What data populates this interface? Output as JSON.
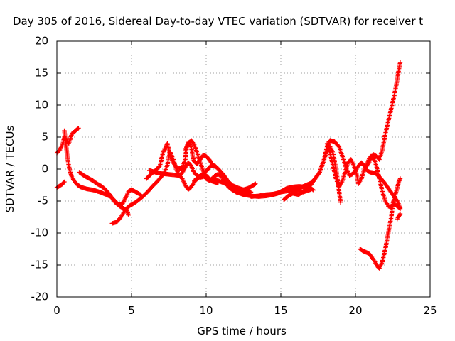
{
  "chart_data": {
    "type": "scatter",
    "title": "Day 305 of 2016, Sidereal Day-to-day VTEC variation (SDTVAR) for receiver t",
    "xlabel": "GPS time / hours",
    "ylabel": "SDTVAR / TECUs",
    "xlim": [
      0,
      25
    ],
    "ylim": [
      -20,
      20
    ],
    "x_ticks": [
      "0",
      "5",
      "10",
      "15",
      "20",
      "25"
    ],
    "y_ticks": [
      "-20",
      "-15",
      "-10",
      "-5",
      "0",
      "5",
      "10",
      "15",
      "20"
    ],
    "grid": true,
    "marker": "plus",
    "colors": {
      "series": "#ff0000"
    },
    "series": [
      {
        "points": [
          [
            0.0,
            -2.9
          ],
          [
            0.2,
            -2.6
          ],
          [
            0.4,
            -2.3
          ],
          [
            0.5,
            -2.0
          ]
        ]
      },
      {
        "points": [
          [
            0.0,
            2.5
          ],
          [
            0.2,
            3.0
          ],
          [
            0.4,
            4.0
          ],
          [
            0.5,
            5.0
          ],
          [
            0.6,
            4.6
          ],
          [
            0.8,
            4.0
          ],
          [
            1.0,
            5.5
          ],
          [
            1.3,
            6.1
          ],
          [
            1.45,
            6.4
          ]
        ]
      },
      {
        "points": [
          [
            0.5,
            6.0
          ],
          [
            0.6,
            4.0
          ],
          [
            0.7,
            2.0
          ],
          [
            0.8,
            0.5
          ],
          [
            0.9,
            -0.5
          ],
          [
            1.0,
            -1.2
          ],
          [
            1.2,
            -2.0
          ],
          [
            1.4,
            -2.5
          ],
          [
            1.6,
            -2.8
          ],
          [
            2.0,
            -3.1
          ],
          [
            2.5,
            -3.3
          ],
          [
            3.0,
            -3.7
          ],
          [
            3.3,
            -4.0
          ],
          [
            3.6,
            -4.3
          ],
          [
            3.9,
            -5.0
          ],
          [
            4.2,
            -5.8
          ],
          [
            4.5,
            -6.2
          ],
          [
            4.7,
            -6.5
          ],
          [
            4.8,
            -7.2
          ]
        ]
      },
      {
        "points": [
          [
            1.5,
            -0.5
          ],
          [
            1.8,
            -1.0
          ],
          [
            2.1,
            -1.4
          ],
          [
            2.4,
            -1.8
          ],
          [
            2.7,
            -2.3
          ],
          [
            3.0,
            -2.7
          ],
          [
            3.3,
            -3.3
          ],
          [
            3.6,
            -4.2
          ],
          [
            3.9,
            -5.2
          ],
          [
            4.1,
            -5.6
          ],
          [
            4.4,
            -5.4
          ],
          [
            4.6,
            -4.5
          ],
          [
            4.8,
            -3.5
          ],
          [
            5.0,
            -3.2
          ],
          [
            5.3,
            -3.6
          ],
          [
            5.6,
            -4.0
          ]
        ]
      },
      {
        "points": [
          [
            3.7,
            -8.5
          ],
          [
            4.0,
            -8.3
          ],
          [
            4.3,
            -7.5
          ],
          [
            4.6,
            -6.3
          ],
          [
            4.9,
            -5.7
          ],
          [
            5.2,
            -5.3
          ],
          [
            5.5,
            -4.8
          ],
          [
            5.8,
            -4.2
          ],
          [
            6.1,
            -3.5
          ],
          [
            6.4,
            -2.7
          ],
          [
            6.7,
            -2.0
          ],
          [
            7.0,
            -1.2
          ],
          [
            7.2,
            -0.5
          ],
          [
            7.4,
            0.6
          ],
          [
            7.5,
            2.0
          ],
          [
            7.6,
            2.6
          ],
          [
            7.8,
            1.5
          ],
          [
            8.0,
            0.0
          ],
          [
            8.2,
            -1.0
          ],
          [
            8.4,
            -0.6
          ],
          [
            8.6,
            0.3
          ],
          [
            8.8,
            1.0
          ],
          [
            9.0,
            0.5
          ],
          [
            9.2,
            -0.6
          ],
          [
            9.4,
            -1.0
          ],
          [
            9.6,
            -1.3
          ],
          [
            9.8,
            -1.2
          ],
          [
            10.0,
            -0.9
          ]
        ]
      },
      {
        "points": [
          [
            6.0,
            -1.5
          ],
          [
            6.3,
            -0.8
          ],
          [
            6.6,
            -0.2
          ],
          [
            6.9,
            0.5
          ],
          [
            7.1,
            2.5
          ],
          [
            7.3,
            3.5
          ],
          [
            7.4,
            4.0
          ],
          [
            7.5,
            3.0
          ],
          [
            7.6,
            2.2
          ],
          [
            7.8,
            1.0
          ],
          [
            8.0,
            0.3
          ],
          [
            8.2,
            0.1
          ],
          [
            8.4,
            0.2
          ],
          [
            8.6,
            1.5
          ],
          [
            8.7,
            3.5
          ],
          [
            8.8,
            4.2
          ],
          [
            9.0,
            3.5
          ],
          [
            9.1,
            2.0
          ],
          [
            9.2,
            1.2
          ],
          [
            9.4,
            0.8
          ],
          [
            9.6,
            1.5
          ],
          [
            9.8,
            2.2
          ],
          [
            10.0,
            2.0
          ],
          [
            10.2,
            1.5
          ],
          [
            10.4,
            0.8
          ],
          [
            10.6,
            0.3
          ]
        ]
      },
      {
        "points": [
          [
            6.2,
            -0.2
          ],
          [
            6.6,
            -0.5
          ],
          [
            7.0,
            -0.7
          ],
          [
            7.4,
            -0.8
          ],
          [
            7.8,
            -0.9
          ],
          [
            8.2,
            -1.0
          ],
          [
            8.4,
            -1.5
          ],
          [
            8.6,
            -2.5
          ],
          [
            8.8,
            -3.2
          ],
          [
            9.0,
            -2.8
          ],
          [
            9.2,
            -2.0
          ],
          [
            9.4,
            -1.5
          ],
          [
            9.6,
            -1.0
          ],
          [
            9.8,
            -0.8
          ],
          [
            10.0,
            -1.0
          ],
          [
            10.2,
            -1.5
          ],
          [
            10.4,
            -1.9
          ],
          [
            10.8,
            -2.2
          ]
        ]
      },
      {
        "points": [
          [
            8.6,
            3.0
          ],
          [
            8.8,
            4.0
          ],
          [
            9.0,
            4.5
          ],
          [
            9.2,
            3.8
          ],
          [
            9.4,
            2.5
          ],
          [
            9.6,
            1.0
          ],
          [
            9.8,
            -0.2
          ],
          [
            10.0,
            -1.5
          ],
          [
            10.2,
            -1.8
          ],
          [
            10.4,
            -1.5
          ],
          [
            10.6,
            -1.0
          ],
          [
            10.8,
            -0.8
          ],
          [
            11.0,
            -1.1
          ],
          [
            11.2,
            -1.8
          ],
          [
            11.4,
            -2.5
          ],
          [
            11.6,
            -3.0
          ],
          [
            11.8,
            -3.3
          ],
          [
            12.2,
            -3.6
          ],
          [
            12.6,
            -3.9
          ],
          [
            13.0,
            -4.0
          ]
        ]
      },
      {
        "points": [
          [
            9.2,
            -1.8
          ],
          [
            9.6,
            -1.2
          ],
          [
            10.0,
            -0.3
          ],
          [
            10.3,
            0.5
          ],
          [
            10.6,
            0.5
          ],
          [
            10.9,
            -0.2
          ],
          [
            11.2,
            -1.0
          ],
          [
            11.5,
            -2.0
          ],
          [
            11.8,
            -2.6
          ],
          [
            12.2,
            -3.0
          ],
          [
            12.6,
            -3.3
          ],
          [
            13.0,
            -3.6
          ]
        ]
      },
      {
        "points": [
          [
            10.5,
            -1.5
          ],
          [
            11.0,
            -2.0
          ],
          [
            11.5,
            -2.5
          ],
          [
            12.0,
            -3.0
          ],
          [
            12.4,
            -3.3
          ],
          [
            12.8,
            -3.0
          ],
          [
            13.1,
            -2.6
          ],
          [
            13.3,
            -2.3
          ]
        ]
      },
      {
        "points": [
          [
            11.5,
            -2.8
          ],
          [
            12.0,
            -3.6
          ],
          [
            12.5,
            -4.0
          ],
          [
            13.0,
            -4.2
          ],
          [
            13.5,
            -4.3
          ],
          [
            14.0,
            -4.2
          ],
          [
            14.5,
            -4.0
          ],
          [
            14.8,
            -3.8
          ],
          [
            15.1,
            -3.4
          ],
          [
            15.4,
            -3.0
          ],
          [
            15.8,
            -2.8
          ],
          [
            16.2,
            -2.7
          ],
          [
            16.6,
            -2.8
          ],
          [
            17.0,
            -3.0
          ],
          [
            17.2,
            -3.3
          ]
        ]
      },
      {
        "points": [
          [
            13.0,
            -4.3
          ],
          [
            13.5,
            -4.2
          ],
          [
            14.0,
            -4.0
          ],
          [
            14.5,
            -3.9
          ],
          [
            15.0,
            -3.6
          ],
          [
            15.5,
            -3.4
          ],
          [
            16.0,
            -3.3
          ],
          [
            16.5,
            -3.6
          ],
          [
            17.0,
            -3.2
          ]
        ]
      },
      {
        "points": [
          [
            15.2,
            -4.8
          ],
          [
            15.5,
            -4.2
          ],
          [
            15.8,
            -3.8
          ],
          [
            16.2,
            -4.0
          ],
          [
            16.5,
            -3.5
          ],
          [
            16.7,
            -3.0
          ],
          [
            17.0,
            -2.5
          ],
          [
            17.3,
            -1.5
          ],
          [
            17.6,
            -0.5
          ],
          [
            17.9,
            1.5
          ],
          [
            18.1,
            3.0
          ],
          [
            18.3,
            3.5
          ],
          [
            18.5,
            2.5
          ],
          [
            18.7,
            0.0
          ],
          [
            18.85,
            -2.5
          ],
          [
            19.0,
            -5.2
          ]
        ]
      },
      {
        "points": [
          [
            15.4,
            -3.2
          ],
          [
            15.8,
            -3.2
          ],
          [
            16.2,
            -3.0
          ],
          [
            16.6,
            -2.6
          ],
          [
            17.0,
            -2.2
          ],
          [
            17.3,
            -1.5
          ],
          [
            17.6,
            -0.5
          ],
          [
            17.9,
            1.5
          ],
          [
            18.1,
            3.5
          ],
          [
            18.3,
            4.5
          ],
          [
            18.6,
            4.3
          ],
          [
            18.9,
            3.5
          ],
          [
            19.2,
            1.5
          ],
          [
            19.4,
            0.0
          ],
          [
            19.6,
            -1.0
          ],
          [
            19.8,
            -0.8
          ],
          [
            20.0,
            -0.2
          ],
          [
            20.2,
            0.5
          ],
          [
            20.4,
            1.0
          ],
          [
            20.6,
            0.5
          ],
          [
            20.8,
            -0.3
          ],
          [
            21.0,
            -0.5
          ],
          [
            21.3,
            -0.6
          ],
          [
            21.6,
            -1.2
          ],
          [
            21.9,
            -2.0
          ],
          [
            22.2,
            -3.0
          ],
          [
            22.5,
            -4.0
          ],
          [
            22.8,
            -5.0
          ],
          [
            23.0,
            -6.0
          ]
        ]
      },
      {
        "points": [
          [
            18.1,
            4.0
          ],
          [
            18.3,
            2.5
          ],
          [
            18.5,
            0.5
          ],
          [
            18.7,
            -1.5
          ],
          [
            18.9,
            -2.8
          ],
          [
            19.1,
            -2.0
          ],
          [
            19.3,
            -0.5
          ],
          [
            19.5,
            1.0
          ],
          [
            19.7,
            1.5
          ],
          [
            19.9,
            0.5
          ],
          [
            20.1,
            -1.0
          ],
          [
            20.2,
            -2.3
          ],
          [
            20.4,
            -1.5
          ],
          [
            20.6,
            0.0
          ],
          [
            20.8,
            1.0
          ],
          [
            21.0,
            2.0
          ],
          [
            21.2,
            1.8
          ],
          [
            21.4,
            0.5
          ],
          [
            21.6,
            -1.5
          ],
          [
            21.8,
            -3.5
          ],
          [
            22.0,
            -5.0
          ],
          [
            22.2,
            -5.8
          ],
          [
            22.4,
            -6.0
          ],
          [
            22.6,
            -5.5
          ],
          [
            22.8,
            -5.8
          ],
          [
            23.0,
            -6.2
          ]
        ]
      },
      {
        "points": [
          [
            20.3,
            -12.5
          ],
          [
            20.5,
            -12.8
          ],
          [
            20.7,
            -13.0
          ],
          [
            20.9,
            -13.2
          ],
          [
            21.1,
            -13.8
          ],
          [
            21.3,
            -14.5
          ],
          [
            21.5,
            -15.3
          ],
          [
            21.6,
            -15.5
          ],
          [
            21.8,
            -14.5
          ],
          [
            22.0,
            -12.5
          ],
          [
            22.2,
            -10.0
          ],
          [
            22.4,
            -7.5
          ],
          [
            22.5,
            -5.5
          ],
          [
            22.6,
            -4.5
          ],
          [
            22.8,
            -3.0
          ],
          [
            22.9,
            -2.0
          ],
          [
            23.0,
            -1.5
          ]
        ]
      },
      {
        "points": [
          [
            20.8,
            0.5
          ],
          [
            21.0,
            1.5
          ],
          [
            21.2,
            2.3
          ],
          [
            21.4,
            2.0
          ],
          [
            21.6,
            1.5
          ],
          [
            21.8,
            3.0
          ],
          [
            22.0,
            5.5
          ],
          [
            22.2,
            7.5
          ],
          [
            22.4,
            9.5
          ],
          [
            22.6,
            11.5
          ],
          [
            22.8,
            14.0
          ],
          [
            22.9,
            15.5
          ],
          [
            23.0,
            16.7
          ]
        ]
      },
      {
        "points": [
          [
            22.8,
            -7.8
          ],
          [
            22.9,
            -7.4
          ],
          [
            23.0,
            -7.0
          ]
        ]
      }
    ]
  }
}
